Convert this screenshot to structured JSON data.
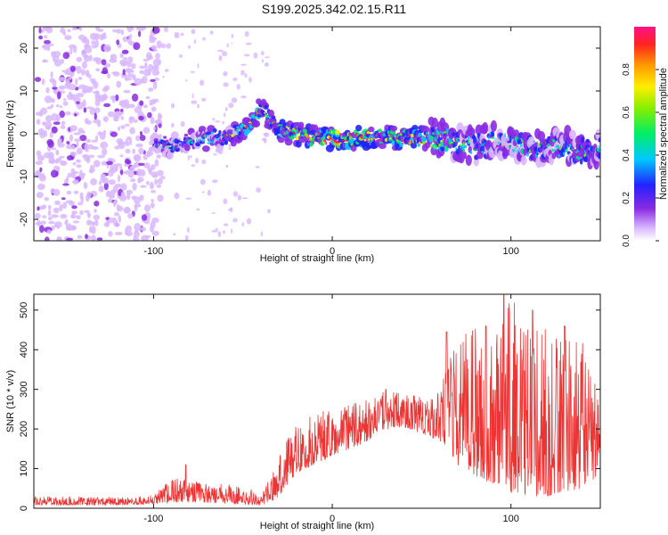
{
  "title": "S199.2025.342.02.15.R11",
  "chart_data": [
    {
      "type": "heatmap",
      "name": "spectrogram",
      "xlabel": "Height of straight line (km)",
      "ylabel": "Frequency (Hz)",
      "xlim": [
        -167,
        150
      ],
      "ylim": [
        -25,
        25
      ],
      "xticks": [
        -100,
        0,
        100
      ],
      "xtick_labels": [
        "-100",
        "0",
        "100"
      ],
      "yticks": [
        -20,
        -10,
        0,
        10,
        20
      ],
      "ytick_labels": [
        "-20",
        "-10",
        "0",
        "10",
        "20"
      ],
      "colorbar": {
        "label": "Normalized spectral amplitude",
        "range": [
          0,
          1
        ],
        "ticks": [
          0.0,
          0.2,
          0.4,
          0.6,
          0.8
        ],
        "tick_labels": [
          "0.0",
          "0.2",
          "0.4",
          "0.6",
          "0.8"
        ]
      },
      "ridge": {
        "x": [
          -100,
          -90,
          -80,
          -70,
          -60,
          -50,
          -44,
          -40,
          -36,
          -30,
          -20,
          -10,
          0,
          10,
          20,
          30,
          40,
          50,
          60,
          70,
          80,
          90,
          100,
          110,
          120,
          130,
          140,
          150
        ],
        "freq": [
          -2,
          -3,
          -2,
          -1,
          -1,
          1,
          3,
          6,
          4,
          1,
          0,
          -1,
          -1,
          -1,
          -1,
          -1,
          -1,
          -1,
          -1,
          -2,
          -3,
          -2,
          -2,
          -3,
          -3,
          -3,
          -4,
          -3
        ],
        "amplitude": [
          0.2,
          0.3,
          0.25,
          0.3,
          0.35,
          0.5,
          0.55,
          0.5,
          0.45,
          0.55,
          0.6,
          0.8,
          0.9,
          0.85,
          0.7,
          0.65,
          0.7,
          0.55,
          0.5,
          0.35,
          0.3,
          0.35,
          0.3,
          0.35,
          0.3,
          0.3,
          0.4,
          0.3
        ]
      },
      "noise_region_x": [
        -167,
        -98
      ]
    },
    {
      "type": "line",
      "name": "snr",
      "xlabel": "Height of straight line (km)",
      "ylabel": "SNR (10 * v/v)",
      "xlim": [
        -167,
        150
      ],
      "ylim": [
        0,
        540
      ],
      "xticks": [
        -100,
        0,
        100
      ],
      "xtick_labels": [
        "-100",
        "0",
        "100"
      ],
      "yticks": [
        0,
        100,
        200,
        300,
        400,
        500
      ],
      "ytick_labels": [
        "0",
        "100",
        "200",
        "300",
        "400",
        "500"
      ],
      "color": "#ee3333",
      "envelope": {
        "x": [
          -167,
          -120,
          -105,
          -95,
          -88,
          -80,
          -70,
          -60,
          -50,
          -40,
          -35,
          -30,
          -25,
          -20,
          -10,
          0,
          10,
          20,
          30,
          40,
          50,
          60,
          65,
          70,
          80,
          90,
          100,
          110,
          120,
          130,
          140,
          150
        ],
        "low": [
          8,
          8,
          10,
          12,
          15,
          15,
          15,
          12,
          10,
          8,
          15,
          30,
          60,
          90,
          110,
          130,
          150,
          170,
          200,
          200,
          190,
          170,
          150,
          110,
          80,
          60,
          40,
          30,
          30,
          40,
          50,
          80
        ],
        "high": [
          30,
          28,
          30,
          55,
          80,
          70,
          65,
          60,
          55,
          40,
          80,
          140,
          180,
          210,
          240,
          250,
          260,
          280,
          300,
          290,
          280,
          300,
          400,
          420,
          480,
          460,
          540,
          500,
          470,
          440,
          420,
          300
        ]
      },
      "peaks": [
        {
          "x": -82,
          "y": 110
        },
        {
          "x": 30,
          "y": 300
        },
        {
          "x": 64,
          "y": 445
        },
        {
          "x": 86,
          "y": 460
        },
        {
          "x": 96,
          "y": 540
        },
        {
          "x": 112,
          "y": 500
        },
        {
          "x": 130,
          "y": 460
        }
      ]
    }
  ]
}
